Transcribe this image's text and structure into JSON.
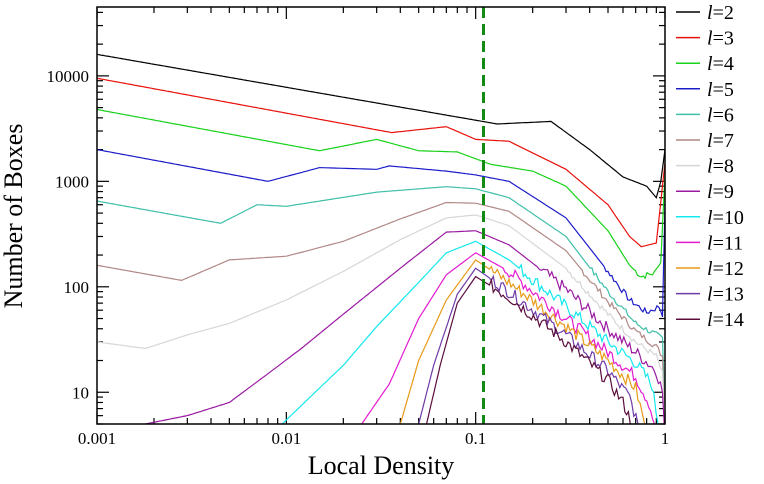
{
  "chart_data": {
    "type": "line",
    "xscale": "log",
    "yscale": "log",
    "xlabel": "Local Density",
    "ylabel": "Number of Boxes",
    "xlim": [
      0.001,
      1
    ],
    "ylim": [
      5,
      45000
    ],
    "xticks": [
      {
        "value": 0.001,
        "label": "0.001"
      },
      {
        "value": 0.01,
        "label": "0.01"
      },
      {
        "value": 0.1,
        "label": "0.1"
      },
      {
        "value": 1,
        "label": "1"
      }
    ],
    "yticks": [
      {
        "value": 10,
        "label": "10"
      },
      {
        "value": 100,
        "label": "100"
      },
      {
        "value": 1000,
        "label": "1000"
      },
      {
        "value": 10000,
        "label": "10000"
      }
    ],
    "reference_line": {
      "x": 0.11,
      "style": "dashed",
      "color": "#138a13"
    },
    "legend_position": "right-outside",
    "series": [
      {
        "name": "l=2",
        "ell": "l",
        "value_label": "=2",
        "color": "#000000",
        "points": [
          [
            0.001,
            16000
          ],
          [
            0.13,
            3500
          ],
          [
            0.25,
            3700
          ],
          [
            0.4,
            2000
          ],
          [
            0.6,
            1100
          ],
          [
            0.8,
            900
          ],
          [
            0.9,
            700
          ],
          [
            0.95,
            1000
          ],
          [
            1.0,
            2000
          ]
        ]
      },
      {
        "name": "l=3",
        "ell": "l",
        "value_label": "=3",
        "color": "#e8120c",
        "points": [
          [
            0.001,
            9500
          ],
          [
            0.036,
            2900
          ],
          [
            0.07,
            3300
          ],
          [
            0.1,
            2500
          ],
          [
            0.15,
            2400
          ],
          [
            0.3,
            1300
          ],
          [
            0.5,
            600
          ],
          [
            0.65,
            300
          ],
          [
            0.75,
            240
          ],
          [
            0.9,
            260
          ],
          [
            1.0,
            1500
          ]
        ]
      },
      {
        "name": "l=4",
        "ell": "l",
        "value_label": "=4",
        "color": "#19d21b",
        "points": [
          [
            0.001,
            4800
          ],
          [
            0.015,
            1950
          ],
          [
            0.03,
            2500
          ],
          [
            0.05,
            1950
          ],
          [
            0.08,
            1900
          ],
          [
            0.12,
            1450
          ],
          [
            0.2,
            1250
          ],
          [
            0.3,
            900
          ],
          [
            0.5,
            340
          ],
          [
            0.65,
            160
          ],
          [
            0.75,
            125
          ],
          [
            0.88,
            135
          ],
          [
            0.95,
            170
          ],
          [
            1.0,
            1200
          ]
        ]
      },
      {
        "name": "l=5",
        "ell": "l",
        "value_label": "=5",
        "color": "#1c1cc8",
        "points": [
          [
            0.001,
            2000
          ],
          [
            0.008,
            1000
          ],
          [
            0.015,
            1350
          ],
          [
            0.03,
            1300
          ],
          [
            0.035,
            1400
          ],
          [
            0.07,
            1250
          ],
          [
            0.1,
            1150
          ],
          [
            0.15,
            1000
          ],
          [
            0.3,
            450
          ],
          [
            0.5,
            140
          ],
          [
            0.65,
            75
          ],
          [
            0.8,
            57
          ],
          [
            0.93,
            65
          ],
          [
            0.97,
            55
          ],
          [
            1.0,
            600
          ]
        ]
      },
      {
        "name": "l=6",
        "ell": "l",
        "value_label": "=6",
        "color": "#3fbfa8",
        "points": [
          [
            0.001,
            650
          ],
          [
            0.0045,
            400
          ],
          [
            0.007,
            600
          ],
          [
            0.01,
            580
          ],
          [
            0.03,
            790
          ],
          [
            0.07,
            890
          ],
          [
            0.1,
            850
          ],
          [
            0.15,
            700
          ],
          [
            0.3,
            300
          ],
          [
            0.5,
            90
          ],
          [
            0.7,
            45
          ],
          [
            0.9,
            35
          ],
          [
            0.97,
            32
          ],
          [
            0.99,
            10
          ]
        ]
      },
      {
        "name": "l=7",
        "ell": "l",
        "value_label": "=7",
        "color": "#b18886",
        "points": [
          [
            0.001,
            160
          ],
          [
            0.0028,
            115
          ],
          [
            0.005,
            180
          ],
          [
            0.01,
            195
          ],
          [
            0.02,
            270
          ],
          [
            0.04,
            440
          ],
          [
            0.07,
            630
          ],
          [
            0.1,
            620
          ],
          [
            0.15,
            520
          ],
          [
            0.3,
            220
          ],
          [
            0.5,
            72
          ],
          [
            0.7,
            38
          ],
          [
            0.9,
            27
          ],
          [
            0.97,
            22
          ],
          [
            0.99,
            8
          ]
        ]
      },
      {
        "name": "l=8",
        "ell": "l",
        "value_label": "=8",
        "color": "#d6d6d6",
        "points": [
          [
            0.001,
            30
          ],
          [
            0.0018,
            26
          ],
          [
            0.003,
            35
          ],
          [
            0.005,
            45
          ],
          [
            0.01,
            75
          ],
          [
            0.02,
            140
          ],
          [
            0.04,
            280
          ],
          [
            0.07,
            450
          ],
          [
            0.1,
            480
          ],
          [
            0.15,
            380
          ],
          [
            0.3,
            150
          ],
          [
            0.5,
            55
          ],
          [
            0.7,
            30
          ],
          [
            0.9,
            22
          ],
          [
            0.97,
            15
          ],
          [
            0.99,
            6
          ]
        ]
      },
      {
        "name": "l=9",
        "ell": "l",
        "value_label": "=9",
        "color": "#9a1aa2",
        "points": [
          [
            0.0018,
            5
          ],
          [
            0.003,
            6
          ],
          [
            0.005,
            8
          ],
          [
            0.008,
            15
          ],
          [
            0.012,
            26
          ],
          [
            0.02,
            55
          ],
          [
            0.04,
            150
          ],
          [
            0.07,
            330
          ],
          [
            0.1,
            340
          ],
          [
            0.15,
            250
          ],
          [
            0.3,
            95
          ],
          [
            0.5,
            40
          ],
          [
            0.7,
            24
          ],
          [
            0.9,
            16
          ],
          [
            0.97,
            10
          ],
          [
            0.99,
            5
          ]
        ]
      },
      {
        "name": "l=10",
        "ell": "l",
        "value_label": "=10",
        "color": "#12e8ee",
        "points": [
          [
            0.0095,
            5
          ],
          [
            0.015,
            11
          ],
          [
            0.02,
            18
          ],
          [
            0.03,
            42
          ],
          [
            0.05,
            110
          ],
          [
            0.07,
            210
          ],
          [
            0.1,
            270
          ],
          [
            0.15,
            180
          ],
          [
            0.3,
            65
          ],
          [
            0.5,
            30
          ],
          [
            0.7,
            19
          ],
          [
            0.85,
            12
          ],
          [
            0.92,
            5
          ]
        ]
      },
      {
        "name": "l=11",
        "ell": "l",
        "value_label": "=11",
        "color": "#e41ad0",
        "points": [
          [
            0.025,
            5
          ],
          [
            0.035,
            12
          ],
          [
            0.05,
            50
          ],
          [
            0.07,
            130
          ],
          [
            0.1,
            210
          ],
          [
            0.15,
            140
          ],
          [
            0.3,
            50
          ],
          [
            0.5,
            24
          ],
          [
            0.7,
            14
          ],
          [
            0.82,
            8
          ],
          [
            0.88,
            5
          ]
        ]
      },
      {
        "name": "l=12",
        "ell": "l",
        "value_label": "=12",
        "color": "#e89a18",
        "points": [
          [
            0.04,
            5
          ],
          [
            0.05,
            20
          ],
          [
            0.07,
            75
          ],
          [
            0.1,
            180
          ],
          [
            0.15,
            110
          ],
          [
            0.3,
            42
          ],
          [
            0.5,
            20
          ],
          [
            0.7,
            11
          ],
          [
            0.78,
            5
          ]
        ]
      },
      {
        "name": "l=13",
        "ell": "l",
        "value_label": "=13",
        "color": "#6e3aa8",
        "points": [
          [
            0.05,
            5
          ],
          [
            0.06,
            18
          ],
          [
            0.08,
            85
          ],
          [
            0.1,
            150
          ],
          [
            0.15,
            90
          ],
          [
            0.3,
            35
          ],
          [
            0.5,
            16
          ],
          [
            0.65,
            9
          ],
          [
            0.72,
            5
          ]
        ]
      },
      {
        "name": "l=14",
        "ell": "l",
        "value_label": "=14",
        "color": "#5a0c3c",
        "points": [
          [
            0.055,
            5
          ],
          [
            0.065,
            18
          ],
          [
            0.08,
            70
          ],
          [
            0.1,
            125
          ],
          [
            0.15,
            80
          ],
          [
            0.3,
            30
          ],
          [
            0.5,
            13
          ],
          [
            0.6,
            8
          ],
          [
            0.67,
            5
          ]
        ]
      }
    ]
  }
}
